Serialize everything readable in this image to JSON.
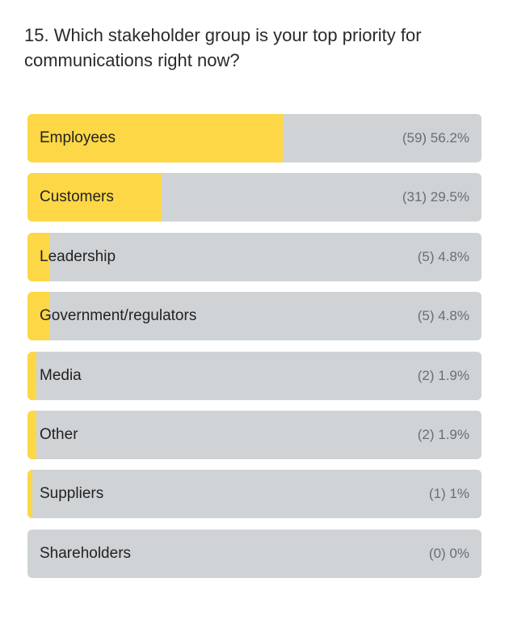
{
  "question": "15. Which stakeholder group is your top priority for communications right now?",
  "colors": {
    "fill": "#fdd746",
    "track": "#cfd3d6"
  },
  "chart_data": {
    "type": "bar",
    "orientation": "horizontal",
    "categories": [
      "Employees",
      "Customers",
      "Leadership",
      "Government/regulators",
      "Media",
      "Other",
      "Suppliers",
      "Shareholders"
    ],
    "counts": [
      59,
      31,
      5,
      5,
      2,
      2,
      1,
      0
    ],
    "values": [
      56.2,
      29.5,
      4.8,
      4.8,
      1.9,
      1.9,
      1,
      0
    ],
    "value_labels": [
      "(59) 56.2%",
      "(31) 29.5%",
      "(5) 4.8%",
      "(5) 4.8%",
      "(2) 1.9%",
      "(2) 1.9%",
      "(1) 1%",
      "(0) 0%"
    ],
    "xlim": [
      0,
      100
    ],
    "grid": false
  }
}
